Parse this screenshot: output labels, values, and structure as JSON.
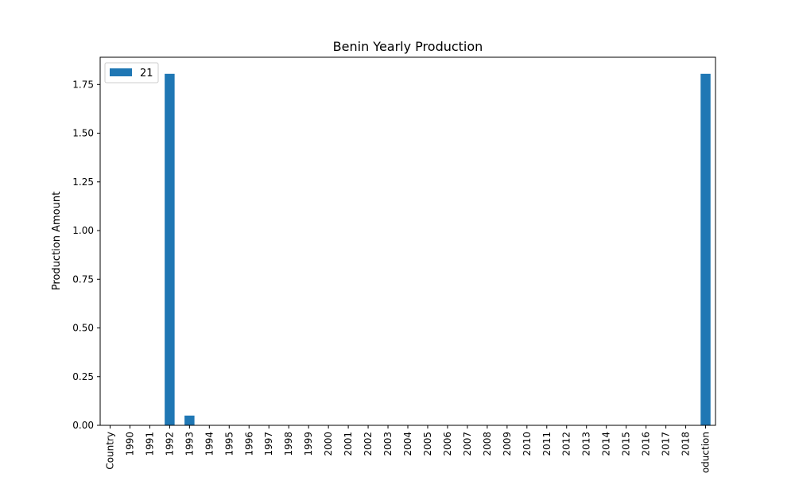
{
  "chart_data": {
    "type": "bar",
    "title": "Benin Yearly Production",
    "xlabel": "",
    "ylabel": "Production Amount",
    "ylim": [
      0,
      1.89
    ],
    "yticks": [
      0.0,
      0.25,
      0.5,
      0.75,
      1.0,
      1.25,
      1.5,
      1.75
    ],
    "ytick_labels": [
      "0.00",
      "0.25",
      "0.50",
      "0.75",
      "1.00",
      "1.25",
      "1.50",
      "1.75"
    ],
    "categories": [
      "Country",
      "1990",
      "1991",
      "1992",
      "1993",
      "1994",
      "1995",
      "1996",
      "1997",
      "1998",
      "1999",
      "2000",
      "2001",
      "2002",
      "2003",
      "2004",
      "2005",
      "2006",
      "2007",
      "2008",
      "2009",
      "2010",
      "2011",
      "2012",
      "2013",
      "2014",
      "2015",
      "2016",
      "2017",
      "2018",
      "oduction"
    ],
    "series": [
      {
        "name": "21",
        "color": "#1f77b4",
        "values": [
          0,
          0,
          0,
          1.805,
          0.05,
          0,
          0,
          0,
          0,
          0,
          0,
          0,
          0,
          0,
          0,
          0,
          0,
          0,
          0,
          0,
          0,
          0,
          0,
          0,
          0,
          0,
          0,
          0,
          0,
          0,
          1.805
        ]
      }
    ],
    "legend": {
      "position": "top-left"
    },
    "grid": false
  }
}
